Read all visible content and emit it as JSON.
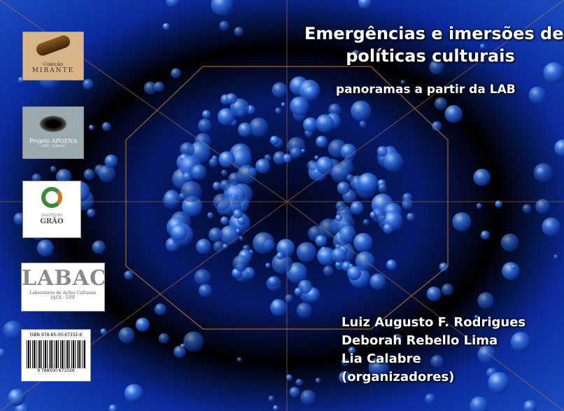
{
  "cover": {
    "title": [
      "Emergências e imersões de",
      "políticas culturais"
    ],
    "subtitle": "panoramas a partir da LAB",
    "authors": [
      "Luiz Augusto F. Rodrigues",
      "Deborah Rebello Lima",
      "Lia Calabre",
      "(organizadores)"
    ],
    "logos": {
      "mirante": [
        "Coleção",
        "MIRANTE"
      ],
      "apoena": [
        "Projeto APOENA",
        "UFF - LABAC"
      ],
      "grao": [
        "INSTITUTO",
        "GRÃO"
      ],
      "labac": [
        "LABAC",
        "Laboratório de Ações Culturais",
        "IACS - UFF"
      ]
    },
    "isbn": "ISBN 978-85-00-67332-6",
    "barcode_number": "9 788500 673326"
  }
}
